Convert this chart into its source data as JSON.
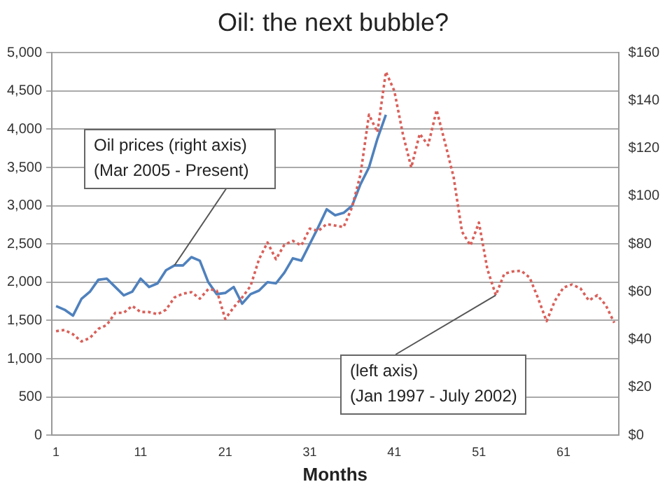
{
  "chart_data": {
    "type": "line",
    "title": "Oil: the next bubble?",
    "xlabel": "Months",
    "xlim": [
      0.5,
      67.5
    ],
    "xticks": [
      1,
      11,
      21,
      31,
      41,
      51,
      61
    ],
    "ylim": [
      0,
      5000
    ],
    "yticks": [
      {
        "value": 0,
        "label": "0"
      },
      {
        "value": 500,
        "label": "500"
      },
      {
        "value": 1000,
        "label": "1,000"
      },
      {
        "value": 1500,
        "label": "1,500"
      },
      {
        "value": 2000,
        "label": "2,000"
      },
      {
        "value": 2500,
        "label": "2,500"
      },
      {
        "value": 3000,
        "label": "3,000"
      },
      {
        "value": 3500,
        "label": "3,500"
      },
      {
        "value": 4000,
        "label": "4,000"
      },
      {
        "value": 4500,
        "label": "4,500"
      },
      {
        "value": 5000,
        "label": "5,000"
      }
    ],
    "y2lim": [
      0,
      160
    ],
    "y2ticks": [
      {
        "value": 0,
        "label": "$0"
      },
      {
        "value": 20,
        "label": "$20"
      },
      {
        "value": 40,
        "label": "$40"
      },
      {
        "value": 60,
        "label": "$60"
      },
      {
        "value": 80,
        "label": "$80"
      },
      {
        "value": 100,
        "label": "$100"
      },
      {
        "value": 120,
        "label": "$120"
      },
      {
        "value": 140,
        "label": "$140"
      },
      {
        "value": 160,
        "label": "$160"
      }
    ],
    "grid": "y",
    "legend": false,
    "marker": "none",
    "series": [
      {
        "color": "#d9605a",
        "axis": "y",
        "line_style": "dotted",
        "x": [
          1,
          2,
          3,
          4,
          5,
          6,
          7,
          8,
          9,
          10,
          11,
          12,
          13,
          14,
          15,
          16,
          17,
          18,
          19,
          20,
          21,
          22,
          23,
          24,
          25,
          26,
          27,
          28,
          29,
          30,
          31,
          32,
          33,
          34,
          35,
          36,
          37,
          38,
          39,
          40,
          41,
          42,
          43,
          44,
          45,
          46,
          47,
          48,
          49,
          50,
          51,
          52,
          53,
          54,
          55,
          56,
          57,
          58,
          59,
          60,
          61,
          62,
          63,
          64,
          65,
          66,
          67
        ],
        "values": [
          1360,
          1375,
          1320,
          1225,
          1270,
          1390,
          1440,
          1600,
          1600,
          1690,
          1610,
          1610,
          1580,
          1640,
          1800,
          1850,
          1870,
          1785,
          1910,
          1890,
          1520,
          1670,
          1800,
          1950,
          2300,
          2520,
          2300,
          2490,
          2540,
          2480,
          2700,
          2670,
          2760,
          2740,
          2720,
          2980,
          3410,
          4190,
          3960,
          4750,
          4500,
          3940,
          3500,
          3940,
          3790,
          4250,
          3820,
          3380,
          2660,
          2480,
          2780,
          2170,
          1830,
          2110,
          2140,
          2150,
          2060,
          1790,
          1490,
          1760,
          1930,
          1970,
          1920,
          1760,
          1830,
          1700,
          1470
        ]
      },
      {
        "color": "#4f81bd",
        "axis": "y2",
        "line_style": "solid",
        "x": [
          1,
          2,
          3,
          4,
          5,
          6,
          7,
          8,
          9,
          10,
          11,
          12,
          13,
          14,
          15,
          16,
          17,
          18,
          19,
          20,
          21,
          22,
          23,
          24,
          25,
          26,
          27,
          28,
          29,
          30,
          31,
          32,
          33,
          34,
          35,
          36,
          37,
          38,
          39,
          40
        ],
        "values": [
          54,
          52.5,
          50,
          57,
          60,
          65,
          65.5,
          62,
          58.5,
          60,
          65.5,
          62,
          63.5,
          69,
          71,
          71,
          74.5,
          73,
          64,
          59,
          59.5,
          62,
          55,
          59,
          60.5,
          64,
          63.5,
          68,
          74,
          73,
          80,
          87,
          94.5,
          92,
          93,
          96,
          105,
          112,
          124,
          134
        ]
      }
    ],
    "annotations": [
      {
        "text": "Oil prices (right axis)\n(Mar 2005 - Present)",
        "x": 15,
        "y": 2220
      },
      {
        "text": "(left axis)\n(Jan 1997 - July 2002)",
        "x": 53,
        "y": 1830
      }
    ]
  }
}
